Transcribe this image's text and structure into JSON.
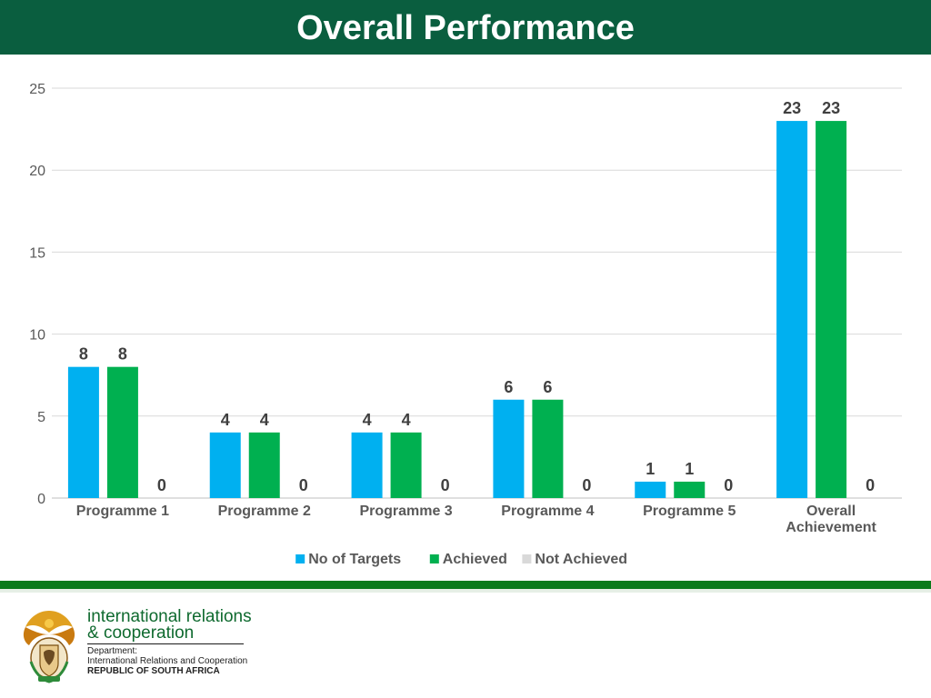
{
  "header": {
    "title": "Overall Performance"
  },
  "chart_data": {
    "type": "bar",
    "categories": [
      "Programme 1",
      "Programme 2",
      "Programme 3",
      "Programme 4",
      "Programme 5",
      "Overall Achievement"
    ],
    "series": [
      {
        "name": "No of Targets",
        "values": [
          8,
          4,
          4,
          6,
          1,
          23
        ],
        "color": "#00b0f0"
      },
      {
        "name": "Achieved",
        "values": [
          8,
          4,
          4,
          6,
          1,
          23
        ],
        "color": "#00b050"
      },
      {
        "name": "Not Achieved",
        "values": [
          0,
          0,
          0,
          0,
          0,
          0
        ],
        "color": "#d9d9d9"
      }
    ],
    "yticks": [
      "0",
      "5",
      "10",
      "15",
      "20",
      "25"
    ],
    "ylim": [
      0,
      25
    ],
    "grid": true,
    "legend": "bottom",
    "data_labels": true
  },
  "footer": {
    "brand_line1": "international relations",
    "brand_line2": "& cooperation",
    "dept_line1": "Department:",
    "dept_line2": "International Relations and Cooperation",
    "dept_line3": "REPUBLIC OF SOUTH AFRICA",
    "accent_color": "#0b7a1c"
  }
}
